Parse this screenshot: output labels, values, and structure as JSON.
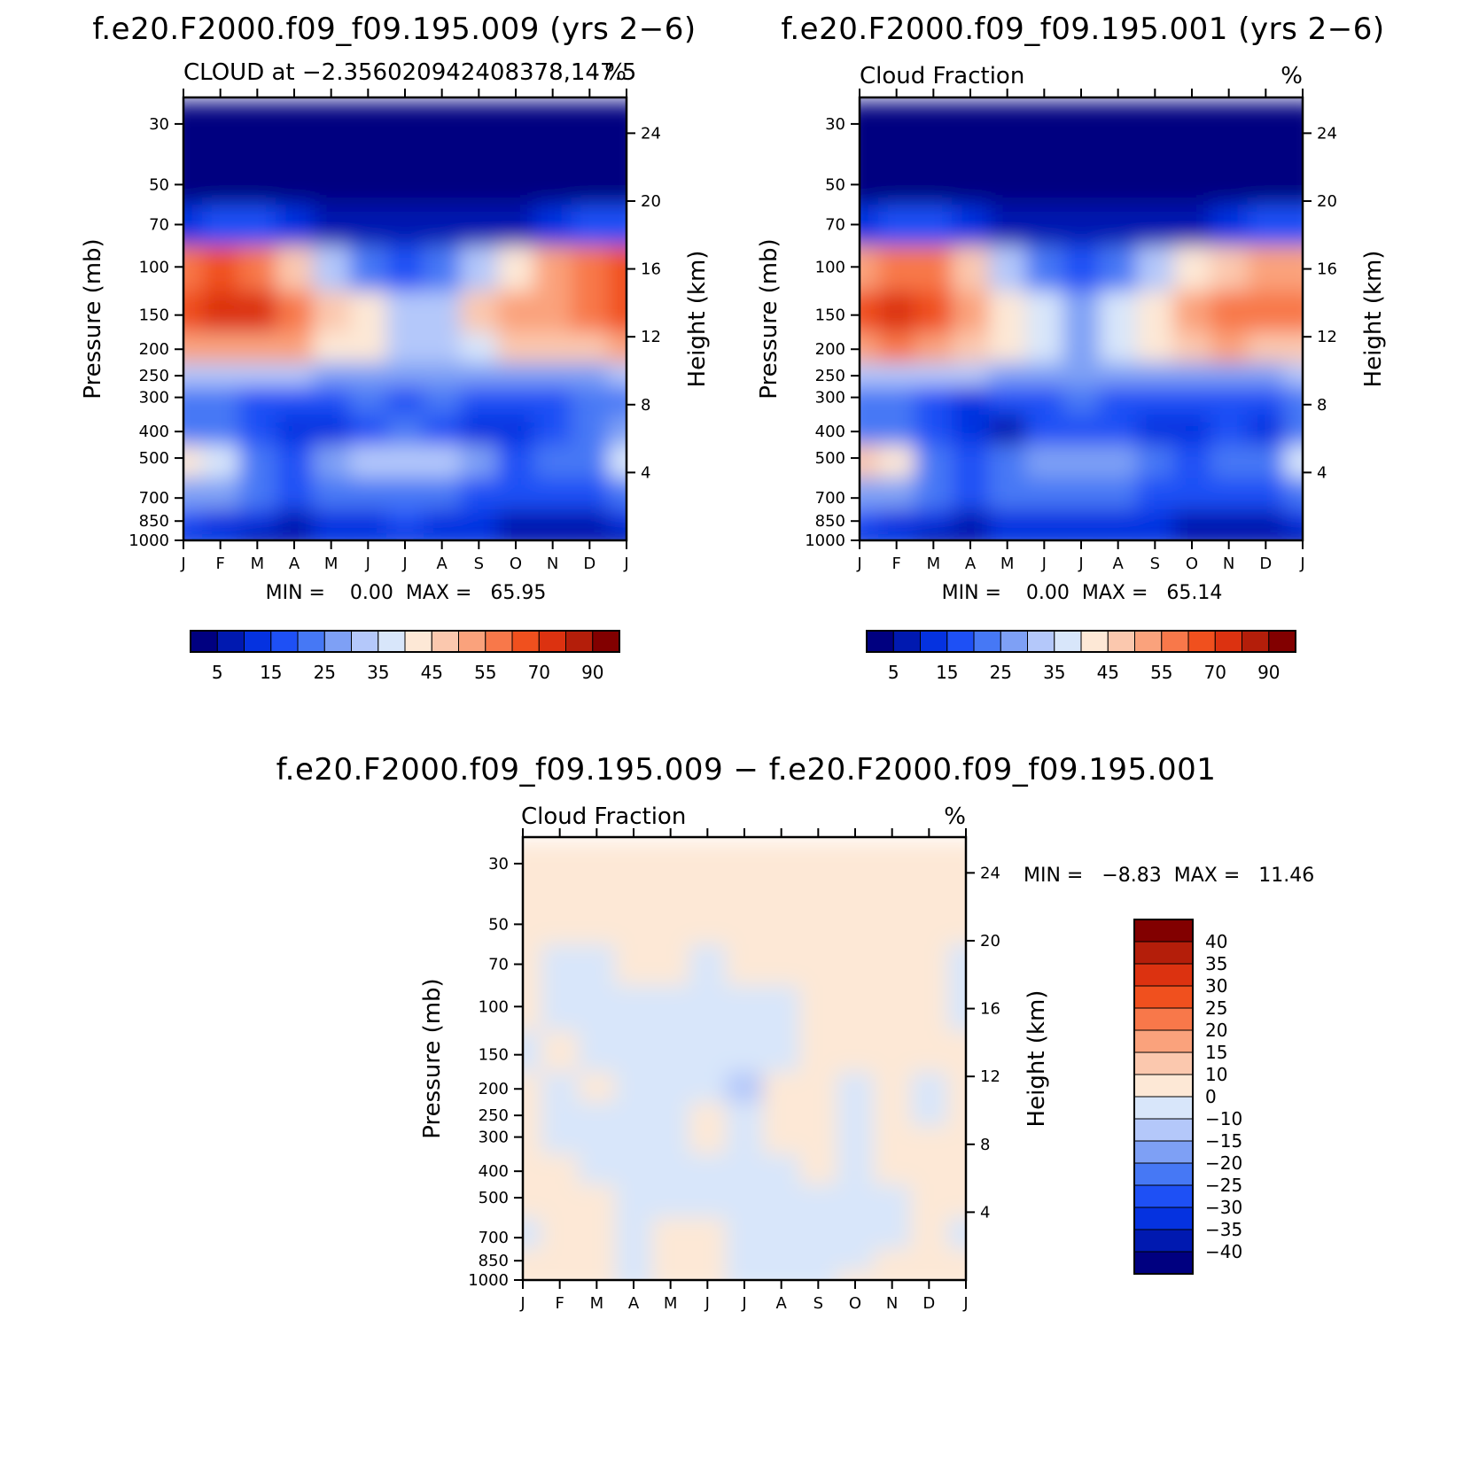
{
  "chart_data": [
    {
      "type": "heatmap",
      "title": "f.e20.F2000.f09_f09.195.009 (yrs 2−6)",
      "subtitle_left": "CLOUD at −2.356020942408378,147.5",
      "subtitle_right": "%",
      "ylabel": "Pressure (mb)",
      "ylabel_right": "Height (km)",
      "minmax": "MIN =    0.00  MAX =   65.95",
      "x_ticks": [
        "J",
        "F",
        "M",
        "A",
        "M",
        "J",
        "J",
        "A",
        "S",
        "O",
        "N",
        "D",
        "J"
      ],
      "y_ticks": [
        "30",
        "50",
        "70",
        "100",
        "150",
        "200",
        "250",
        "300",
        "400",
        "500",
        "700",
        "850",
        "1000"
      ],
      "y_ticks_right": [
        "24",
        "20",
        "16",
        "12",
        "8",
        "4"
      ],
      "colorbar_labels": [
        "5",
        "15",
        "25",
        "35",
        "45",
        "55",
        "70",
        "90"
      ],
      "grid": [
        [
          0,
          0,
          0,
          0,
          0,
          0,
          0,
          0,
          0,
          0,
          0,
          0,
          0
        ],
        [
          0,
          0,
          0,
          0,
          0,
          0,
          0,
          0,
          0,
          0,
          0,
          0,
          0
        ],
        [
          2,
          3,
          3,
          2,
          1,
          1,
          1,
          1,
          1,
          1,
          2,
          3,
          3
        ],
        [
          11,
          12,
          11,
          9,
          6,
          4,
          3,
          4,
          6,
          8,
          10,
          11,
          12
        ],
        [
          12,
          13,
          13,
          11,
          9,
          8,
          6,
          6,
          9,
          10,
          10,
          11,
          12
        ],
        [
          10,
          10,
          10,
          10,
          8,
          8,
          6,
          6,
          7,
          9,
          9,
          9,
          10
        ],
        [
          6,
          6,
          6,
          6,
          5,
          5,
          5,
          5,
          5,
          5,
          5,
          5,
          6
        ],
        [
          4,
          4,
          3,
          3,
          3,
          4,
          3,
          4,
          3,
          3,
          3,
          4,
          4
        ],
        [
          4,
          4,
          3,
          2,
          2,
          3,
          4,
          3,
          2,
          2,
          3,
          4,
          5
        ],
        [
          8,
          7,
          4,
          3,
          5,
          6,
          6,
          6,
          5,
          3,
          4,
          4,
          7
        ],
        [
          5,
          5,
          4,
          3,
          4,
          4,
          4,
          4,
          3,
          3,
          3,
          3,
          4
        ],
        [
          3,
          2,
          2,
          1,
          2,
          2,
          3,
          2,
          2,
          1,
          1,
          1,
          2
        ],
        [
          2,
          2,
          1,
          1,
          2,
          2,
          2,
          2,
          2,
          1,
          1,
          1,
          1
        ]
      ]
    },
    {
      "type": "heatmap",
      "title": "f.e20.F2000.f09_f09.195.001 (yrs 2−6)",
      "subtitle_left": "Cloud Fraction",
      "subtitle_right": "%",
      "ylabel": "Pressure (mb)",
      "ylabel_right": "Height (km)",
      "minmax": "MIN =    0.00  MAX =   65.14",
      "x_ticks": [
        "J",
        "F",
        "M",
        "A",
        "M",
        "J",
        "J",
        "A",
        "S",
        "O",
        "N",
        "D",
        "J"
      ],
      "y_ticks": [
        "30",
        "50",
        "70",
        "100",
        "150",
        "200",
        "250",
        "300",
        "400",
        "500",
        "700",
        "850",
        "1000"
      ],
      "y_ticks_right": [
        "24",
        "20",
        "16",
        "12",
        "8",
        "4"
      ],
      "colorbar_labels": [
        "5",
        "15",
        "25",
        "35",
        "45",
        "55",
        "70",
        "90"
      ],
      "grid": [
        [
          0,
          0,
          0,
          0,
          0,
          0,
          0,
          0,
          0,
          0,
          0,
          0,
          0
        ],
        [
          0,
          0,
          0,
          0,
          0,
          0,
          0,
          0,
          0,
          0,
          0,
          0,
          0
        ],
        [
          2,
          3,
          3,
          2,
          1,
          1,
          1,
          1,
          1,
          1,
          2,
          3,
          3
        ],
        [
          10,
          11,
          11,
          9,
          6,
          4,
          3,
          4,
          6,
          8,
          9,
          10,
          10
        ],
        [
          12,
          13,
          12,
          10,
          8,
          7,
          5,
          7,
          8,
          10,
          11,
          11,
          11
        ],
        [
          10,
          11,
          10,
          9,
          8,
          7,
          5,
          7,
          8,
          9,
          10,
          9,
          9
        ],
        [
          6,
          6,
          6,
          6,
          5,
          5,
          5,
          5,
          5,
          5,
          5,
          5,
          6
        ],
        [
          4,
          4,
          3,
          2,
          3,
          3,
          4,
          3,
          3,
          3,
          3,
          3,
          4
        ],
        [
          4,
          4,
          3,
          2,
          1,
          3,
          3,
          3,
          2,
          2,
          3,
          2,
          4
        ],
        [
          9,
          8,
          4,
          3,
          4,
          5,
          5,
          5,
          4,
          3,
          4,
          4,
          7
        ],
        [
          5,
          5,
          4,
          3,
          4,
          4,
          4,
          4,
          3,
          3,
          3,
          3,
          4
        ],
        [
          3,
          2,
          2,
          1,
          2,
          2,
          2,
          2,
          2,
          1,
          1,
          1,
          2
        ],
        [
          2,
          2,
          1,
          1,
          2,
          2,
          2,
          2,
          2,
          1,
          1,
          1,
          1
        ]
      ]
    },
    {
      "type": "heatmap",
      "title": "f.e20.F2000.f09_f09.195.009 − f.e20.F2000.f09_f09.195.001",
      "subtitle_left": "Cloud Fraction",
      "subtitle_right": "%",
      "ylabel": "Pressure (mb)",
      "ylabel_right": "Height (km)",
      "minmax": "MIN =   −8.83  MAX =   11.46",
      "x_ticks": [
        "J",
        "F",
        "M",
        "A",
        "M",
        "J",
        "J",
        "A",
        "S",
        "O",
        "N",
        "D",
        "J"
      ],
      "y_ticks": [
        "30",
        "50",
        "70",
        "100",
        "150",
        "200",
        "250",
        "300",
        "400",
        "500",
        "700",
        "850",
        "1000"
      ],
      "y_ticks_right": [
        "24",
        "20",
        "16",
        "12",
        "8",
        "4"
      ],
      "colorbar_labels": [
        "40",
        "35",
        "30",
        "25",
        "20",
        "15",
        "10",
        "0",
        "−10",
        "−15",
        "−20",
        "−25",
        "−30",
        "−35",
        "−40"
      ],
      "grid": [
        [
          7,
          7,
          7,
          7,
          7,
          7,
          7,
          7,
          7,
          7,
          7,
          7,
          7
        ],
        [
          7,
          7,
          7,
          7,
          7,
          7,
          7,
          7,
          7,
          7,
          7,
          7,
          7
        ],
        [
          7,
          8,
          8,
          7,
          7,
          8,
          7,
          7,
          7,
          7,
          7,
          7,
          8
        ],
        [
          7,
          8,
          8,
          8,
          8,
          8,
          8,
          8,
          7,
          7,
          7,
          7,
          8
        ],
        [
          8,
          7,
          8,
          8,
          8,
          8,
          8,
          8,
          7,
          7,
          7,
          7,
          7
        ],
        [
          7,
          8,
          7,
          8,
          8,
          8,
          9,
          7,
          7,
          8,
          7,
          8,
          7
        ],
        [
          7,
          8,
          8,
          8,
          8,
          7,
          8,
          7,
          7,
          8,
          7,
          8,
          7
        ],
        [
          7,
          8,
          8,
          8,
          8,
          7,
          8,
          7,
          7,
          8,
          7,
          7,
          7
        ],
        [
          7,
          7,
          8,
          8,
          8,
          8,
          8,
          8,
          7,
          8,
          7,
          7,
          7
        ],
        [
          7,
          7,
          7,
          8,
          8,
          8,
          8,
          8,
          8,
          8,
          8,
          7,
          7
        ],
        [
          8,
          7,
          7,
          8,
          7,
          7,
          8,
          8,
          8,
          8,
          8,
          7,
          8
        ],
        [
          7,
          7,
          7,
          8,
          7,
          7,
          8,
          8,
          8,
          8,
          7,
          7,
          7
        ],
        [
          7,
          7,
          7,
          8,
          7,
          7,
          8,
          8,
          8,
          7,
          7,
          7,
          7
        ]
      ]
    }
  ],
  "palette_abs": [
    "#000080",
    "#0019b0",
    "#0532e0",
    "#1e50f5",
    "#4678f5",
    "#7ea0f5",
    "#b4c8fa",
    "#d8e6fa",
    "#fde8d6",
    "#fbc8ae",
    "#faa27c",
    "#f8784a",
    "#f0501e",
    "#dc3210",
    "#b41e0a",
    "#820000"
  ],
  "palette_diff": [
    "#820000",
    "#b41e0a",
    "#dc3210",
    "#f0501e",
    "#f8784a",
    "#faa27c",
    "#fbc8ae",
    "#fde8d6",
    "#d8e6fa",
    "#b4c8fa",
    "#7ea0f5",
    "#4678f5",
    "#1e50f5",
    "#0532e0",
    "#0019b0",
    "#000080"
  ]
}
